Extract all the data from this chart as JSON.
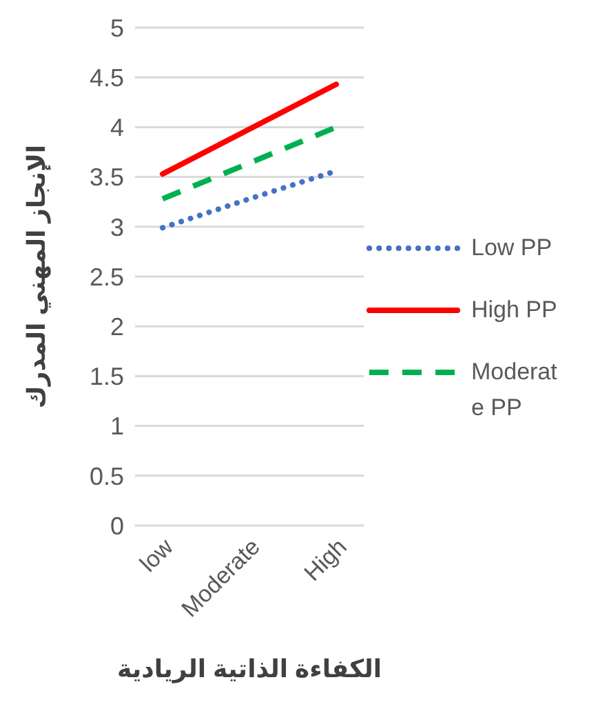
{
  "chart_data": {
    "type": "line",
    "xlabel": "الكفاءة الذاتية الريادية",
    "ylabel": "الإنجاز المهني المدرك",
    "categories": [
      "low",
      "Moderate",
      "High"
    ],
    "series": [
      {
        "name": "Low PP",
        "color": "#4472c4",
        "line_style": "dotted",
        "values": [
          2.99,
          3.28,
          3.56
        ]
      },
      {
        "name": "High PP",
        "color": "#ff0000",
        "line_style": "solid",
        "values": [
          3.53,
          3.98,
          4.43
        ]
      },
      {
        "name": "Moderate PP",
        "color": "#00b050",
        "line_style": "dashed",
        "values": [
          3.28,
          3.64,
          4.0
        ]
      }
    ],
    "ylim": [
      0,
      5
    ],
    "yticks": [
      0,
      0.5,
      1,
      1.5,
      2,
      2.5,
      3,
      3.5,
      4,
      4.5,
      5
    ],
    "grid": "y",
    "legend": "right",
    "marker": "none"
  }
}
